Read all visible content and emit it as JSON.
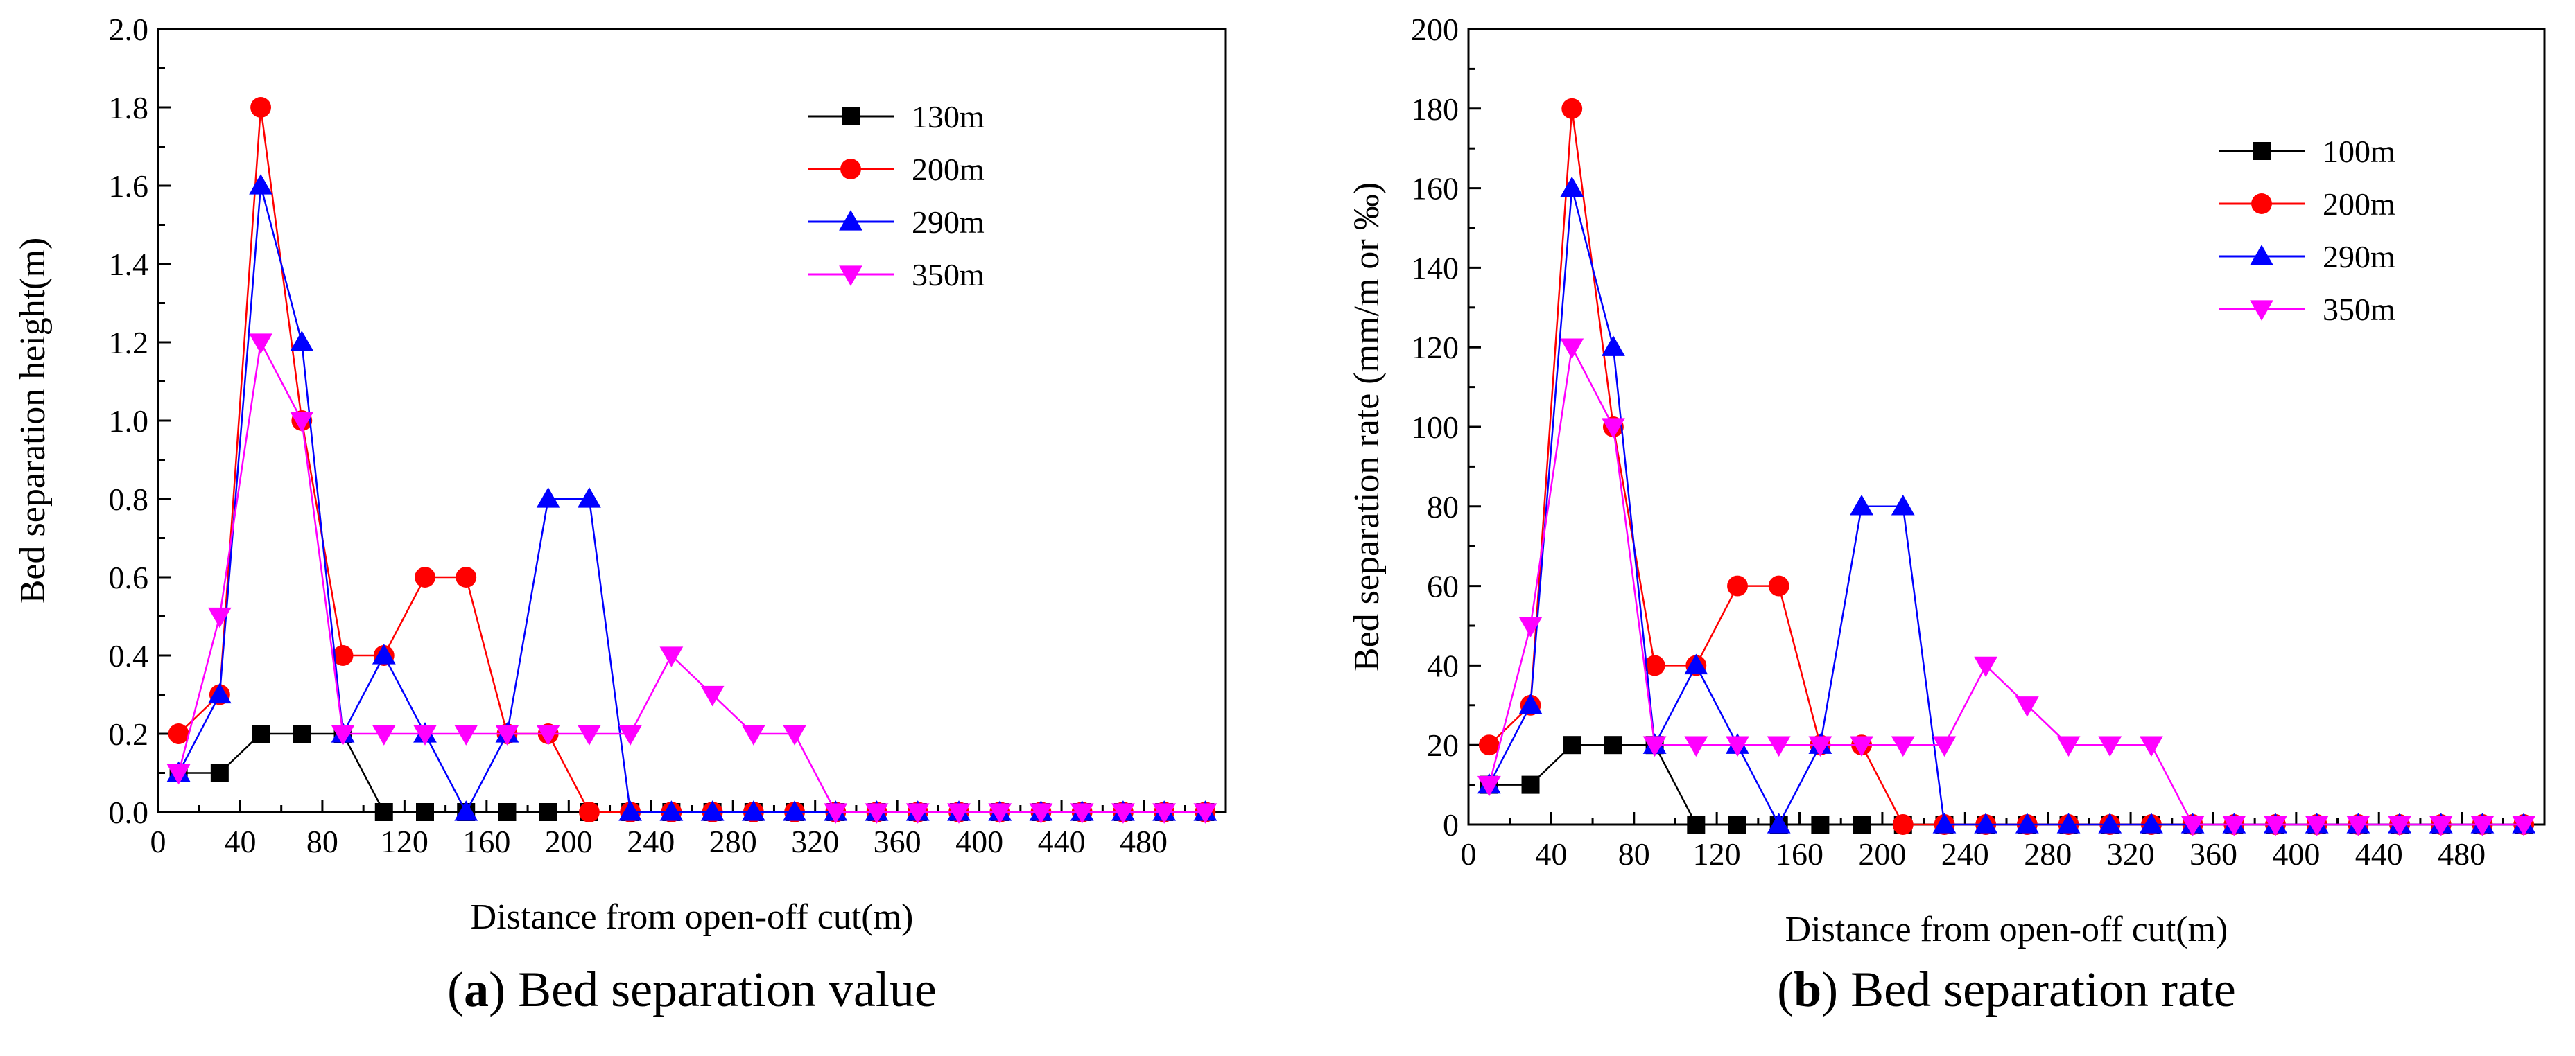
{
  "chart_data": [
    {
      "type": "line",
      "panel_letter": "a",
      "caption": "Bed separation value",
      "xlabel": "Distance from open-off cut(m)",
      "ylabel": "Bed separation height(m)",
      "xlim": [
        0,
        520
      ],
      "ylim": [
        0,
        2.0
      ],
      "xticks": [
        0,
        40,
        80,
        120,
        160,
        200,
        240,
        280,
        320,
        360,
        400,
        440,
        480
      ],
      "yticks": [
        0.0,
        0.2,
        0.4,
        0.6,
        0.8,
        1.0,
        1.2,
        1.4,
        1.6,
        1.8,
        2.0
      ],
      "ytick_decimals": 1,
      "x": [
        10,
        30,
        50,
        70,
        90,
        110,
        130,
        150,
        170,
        190,
        210,
        230,
        250,
        270,
        290,
        310,
        330,
        350,
        370,
        390,
        410,
        430,
        450,
        470,
        490,
        510
      ],
      "series": [
        {
          "name": "130m",
          "color": "#000000",
          "marker": "square",
          "values": [
            0.1,
            0.1,
            0.2,
            0.2,
            0.2,
            0,
            0,
            0,
            0,
            0,
            0,
            0,
            0,
            0,
            0,
            0,
            0,
            0,
            0,
            0,
            0,
            0,
            0,
            0,
            0,
            0
          ]
        },
        {
          "name": "200m",
          "color": "#ff0000",
          "marker": "circle",
          "values": [
            0.2,
            0.3,
            1.8,
            1.0,
            0.4,
            0.4,
            0.6,
            0.6,
            0.2,
            0.2,
            0,
            0,
            0,
            0,
            0,
            0,
            0,
            0,
            0,
            0,
            0,
            0,
            0,
            0,
            0,
            0
          ]
        },
        {
          "name": "290m",
          "color": "#0000ff",
          "marker": "triangle-up",
          "values": [
            0.1,
            0.3,
            1.6,
            1.2,
            0.2,
            0.4,
            0.2,
            0,
            0.2,
            0.8,
            0.8,
            0,
            0,
            0,
            0,
            0,
            0,
            0,
            0,
            0,
            0,
            0,
            0,
            0,
            0,
            0
          ]
        },
        {
          "name": "350m",
          "color": "#ff00ff",
          "marker": "triangle-down",
          "values": [
            0.1,
            0.5,
            1.2,
            1.0,
            0.2,
            0.2,
            0.2,
            0.2,
            0.2,
            0.2,
            0.2,
            0.2,
            0.4,
            0.3,
            0.2,
            0.2,
            0,
            0,
            0,
            0,
            0,
            0,
            0,
            0,
            0,
            0
          ]
        }
      ],
      "legend_position": "top-right"
    },
    {
      "type": "line",
      "panel_letter": "b",
      "caption": "Bed separation rate",
      "xlabel": "Distance from open-off cut(m)",
      "ylabel": "Bed separation rate (mm/m or ‰)",
      "xlim": [
        0,
        520
      ],
      "ylim": [
        0,
        200
      ],
      "xticks": [
        0,
        40,
        80,
        120,
        160,
        200,
        240,
        280,
        320,
        360,
        400,
        440,
        480
      ],
      "yticks": [
        0,
        20,
        40,
        60,
        80,
        100,
        120,
        140,
        160,
        180,
        200
      ],
      "ytick_decimals": 0,
      "x": [
        10,
        30,
        50,
        70,
        90,
        110,
        130,
        150,
        170,
        190,
        210,
        230,
        250,
        270,
        290,
        310,
        330,
        350,
        370,
        390,
        410,
        430,
        450,
        470,
        490,
        510
      ],
      "series": [
        {
          "name": "100m",
          "color": "#000000",
          "marker": "square",
          "values": [
            10,
            10,
            20,
            20,
            20,
            0,
            0,
            0,
            0,
            0,
            0,
            0,
            0,
            0,
            0,
            0,
            0,
            0,
            0,
            0,
            0,
            0,
            0,
            0,
            0,
            0
          ]
        },
        {
          "name": "200m",
          "color": "#ff0000",
          "marker": "circle",
          "values": [
            20,
            30,
            180,
            100,
            40,
            40,
            60,
            60,
            20,
            20,
            0,
            0,
            0,
            0,
            0,
            0,
            0,
            0,
            0,
            0,
            0,
            0,
            0,
            0,
            0,
            0
          ]
        },
        {
          "name": "290m",
          "color": "#0000ff",
          "marker": "triangle-up",
          "values": [
            10,
            30,
            160,
            120,
            20,
            40,
            20,
            0,
            20,
            80,
            80,
            0,
            0,
            0,
            0,
            0,
            0,
            0,
            0,
            0,
            0,
            0,
            0,
            0,
            0,
            0
          ]
        },
        {
          "name": "350m",
          "color": "#ff00ff",
          "marker": "triangle-down",
          "values": [
            10,
            50,
            120,
            100,
            20,
            20,
            20,
            20,
            20,
            20,
            20,
            20,
            40,
            30,
            20,
            20,
            20,
            0,
            0,
            0,
            0,
            0,
            0,
            0,
            0,
            0
          ]
        }
      ],
      "legend_position": "top-right"
    }
  ]
}
